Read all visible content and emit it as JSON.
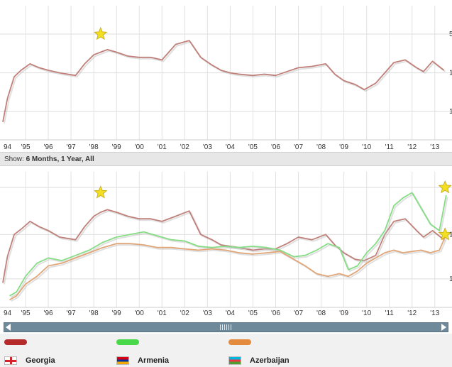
{
  "show_bar": {
    "prefix": "Show:",
    "options": "6 Months, 1 Year, All"
  },
  "chart_data": [
    {
      "type": "line",
      "title": "",
      "x_labels": [
        "94",
        "'95",
        "'96",
        "'97",
        "'98",
        "'99",
        "'00",
        "'01",
        "'02",
        "'03",
        "'04",
        "'05",
        "'06",
        "'07",
        "'08",
        "'09",
        "'10",
        "'11",
        "'12",
        "'13"
      ],
      "y_tick_labels": [
        "5",
        "1",
        "1"
      ],
      "xlim": [
        1994,
        2013.6
      ],
      "ylim": [
        0,
        100
      ],
      "series": [
        {
          "name": "Georgia",
          "color": "#c0807a",
          "x": [
            1994.0,
            1994.2,
            1994.5,
            1994.8,
            1995.2,
            1995.6,
            1996.0,
            1996.5,
            1997.2,
            1997.6,
            1998.0,
            1998.3,
            1998.6,
            1999.0,
            1999.5,
            2000.0,
            2000.5,
            2001.0,
            2001.6,
            2002.2,
            2002.7,
            2003.2,
            2003.6,
            2004.0,
            2004.4,
            2005.0,
            2005.5,
            2006.0,
            2006.5,
            2007.0,
            2007.6,
            2008.2,
            2008.6,
            2009.0,
            2009.5,
            2009.9,
            2010.4,
            2010.8,
            2011.2,
            2011.7,
            2012.2,
            2012.5,
            2012.9,
            2013.4
          ],
          "values": [
            10,
            28,
            45,
            50,
            55,
            52,
            50,
            48,
            46,
            55,
            62,
            64,
            66,
            64,
            61,
            60,
            60,
            58,
            70,
            73,
            60,
            54,
            50,
            48,
            47,
            46,
            47,
            46,
            49,
            52,
            53,
            55,
            47,
            42,
            39,
            35,
            40,
            48,
            56,
            58,
            52,
            49,
            57,
            50
          ]
        }
      ],
      "markers": [
        {
          "x": 1998.3,
          "y": 78,
          "shape": "star",
          "color": "#f2df22"
        }
      ]
    },
    {
      "type": "line",
      "title": "",
      "x_labels": [
        "94",
        "'95",
        "'96",
        "'97",
        "'98",
        "'99",
        "'00",
        "'01",
        "'02",
        "'03",
        "'04",
        "'05",
        "'06",
        "'07",
        "'08",
        "'09",
        "'10",
        "'11",
        "'12",
        "'13"
      ],
      "y_tick_labels": [
        "1",
        "1"
      ],
      "xlim": [
        1994,
        2013.6
      ],
      "ylim": [
        0,
        100
      ],
      "series": [
        {
          "name": "Georgia",
          "color": "#c0807a",
          "x": [
            1994.0,
            1994.2,
            1994.5,
            1994.8,
            1995.2,
            1995.6,
            1996.0,
            1996.5,
            1997.2,
            1997.6,
            1998.0,
            1998.3,
            1998.6,
            1999.0,
            1999.5,
            2000.0,
            2000.5,
            2001.0,
            2001.6,
            2002.2,
            2002.7,
            2003.2,
            2003.6,
            2004.0,
            2004.4,
            2005.0,
            2005.5,
            2006.0,
            2006.5,
            2007.0,
            2007.6,
            2008.2,
            2008.6,
            2009.0,
            2009.5,
            2009.9,
            2010.4,
            2010.8,
            2011.2,
            2011.7,
            2012.2,
            2012.5,
            2012.9,
            2013.4
          ],
          "values": [
            15,
            35,
            52,
            56,
            62,
            58,
            55,
            50,
            48,
            58,
            66,
            69,
            71,
            69,
            66,
            64,
            64,
            62,
            66,
            70,
            52,
            48,
            44,
            43,
            42,
            40,
            41,
            41,
            45,
            50,
            48,
            52,
            44,
            38,
            33,
            32,
            36,
            52,
            62,
            64,
            55,
            50,
            55,
            48
          ]
        },
        {
          "name": "Armenia",
          "color": "#86dd86",
          "x": [
            1994.3,
            1994.6,
            1995.0,
            1995.5,
            1996.0,
            1996.6,
            1997.2,
            1997.8,
            1998.4,
            1999.0,
            1999.6,
            2000.2,
            2000.8,
            2001.4,
            2002.0,
            2002.6,
            2003.2,
            2003.8,
            2004.4,
            2005.0,
            2005.6,
            2006.2,
            2006.8,
            2007.3,
            2007.8,
            2008.3,
            2008.8,
            2009.2,
            2009.6,
            2010.0,
            2010.4,
            2010.8,
            2011.2,
            2011.6,
            2012.0,
            2012.4,
            2012.8,
            2013.2,
            2013.5
          ],
          "values": [
            5,
            8,
            20,
            30,
            34,
            32,
            36,
            40,
            46,
            50,
            52,
            54,
            51,
            48,
            47,
            43,
            42,
            43,
            42,
            43,
            42,
            40,
            35,
            36,
            40,
            45,
            42,
            25,
            28,
            38,
            45,
            55,
            74,
            80,
            84,
            72,
            60,
            55,
            82
          ]
        },
        {
          "name": "Azerbaijan",
          "color": "#e1a678",
          "x": [
            1994.3,
            1994.6,
            1995.0,
            1995.5,
            1996.0,
            1996.6,
            1997.2,
            1997.8,
            1998.4,
            1999.0,
            1999.6,
            2000.2,
            2000.8,
            2001.4,
            2002.0,
            2002.6,
            2003.2,
            2003.8,
            2004.4,
            2005.0,
            2005.6,
            2006.2,
            2006.8,
            2007.3,
            2007.8,
            2008.3,
            2008.8,
            2009.2,
            2009.6,
            2010.0,
            2010.4,
            2010.8,
            2011.2,
            2011.6,
            2012.0,
            2012.4,
            2012.8,
            2013.2,
            2013.5
          ],
          "values": [
            2,
            5,
            14,
            20,
            28,
            30,
            34,
            38,
            42,
            45,
            45,
            44,
            42,
            42,
            41,
            40,
            41,
            40,
            38,
            37,
            38,
            39,
            33,
            28,
            22,
            20,
            22,
            20,
            24,
            30,
            34,
            38,
            40,
            38,
            39,
            40,
            38,
            40,
            52
          ]
        }
      ],
      "markers": [
        {
          "x": 1998.3,
          "y": 84,
          "shape": "star",
          "color": "#f2df22"
        },
        {
          "x": 2013.45,
          "y": 88,
          "shape": "star",
          "color": "#f2df22"
        },
        {
          "x": 2013.45,
          "y": 52,
          "shape": "star",
          "color": "#f2df22"
        }
      ]
    }
  ],
  "legend": {
    "items": [
      {
        "label": "Georgia",
        "color": "#b52b2b",
        "flag": "georgia-flag-icon"
      },
      {
        "label": "Armenia",
        "color": "#48d84a",
        "flag": "armenia-flag-icon"
      },
      {
        "label": "Azerbaijan",
        "color": "#e38a3c",
        "flag": "azerbaijan-flag-icon"
      }
    ]
  },
  "scrollbar": {
    "left_icon": "scroll-left-icon",
    "right_icon": "scroll-right-icon",
    "grip_icon": "scroll-grip-icon"
  }
}
